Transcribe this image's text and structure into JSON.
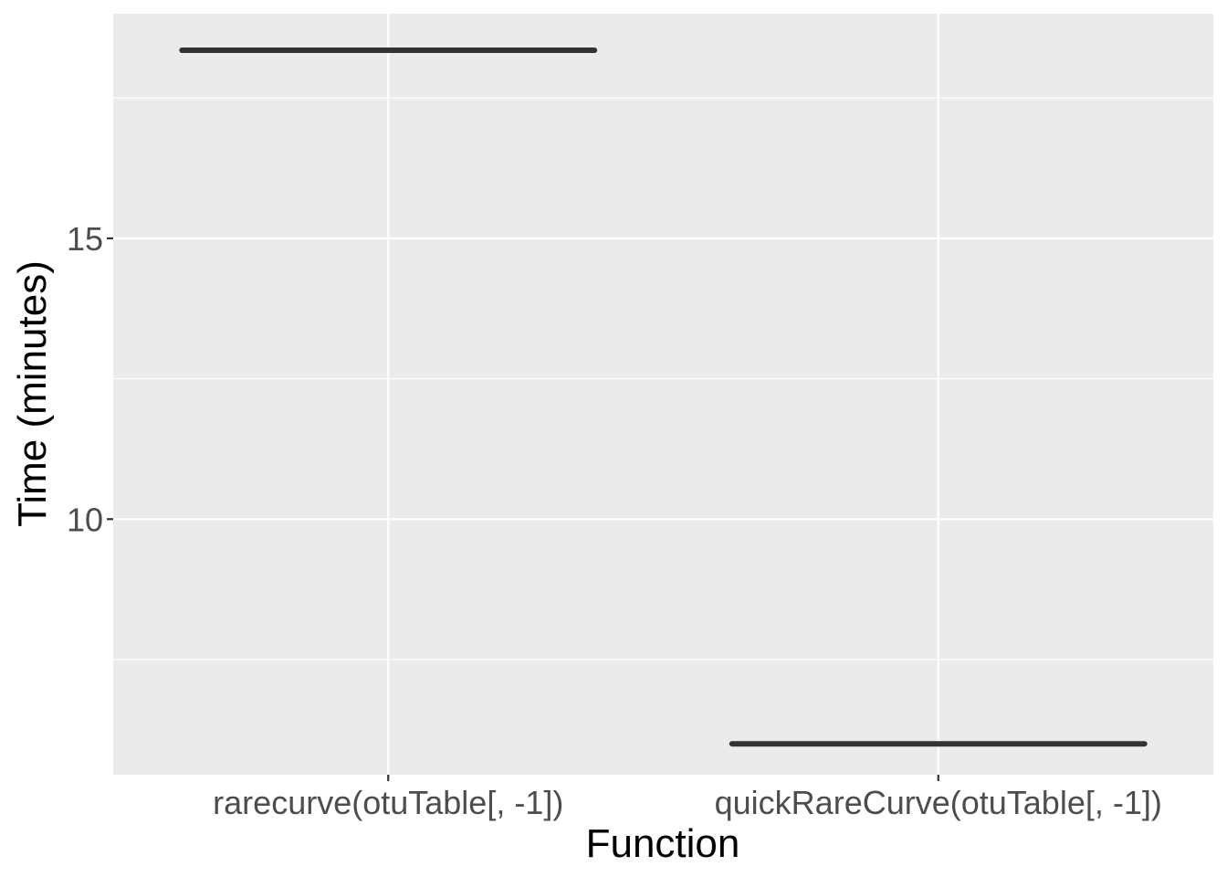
{
  "chart_data": {
    "type": "boxplot",
    "xlabel": "Function",
    "ylabel": "Time (minutes)",
    "categories": [
      "rarecurve(otuTable[, -1])",
      "quickRareCurve(otuTable[, -1])"
    ],
    "values": [
      18.35,
      6.0
    ],
    "ylim": [
      5.45,
      19.0
    ],
    "yticks": [
      10,
      15
    ],
    "grid": true,
    "colors": {
      "panel_background": "#ebebeb",
      "grid_major": "#ffffff",
      "box_line": "#333333",
      "tick_text": "#4d4d4d"
    }
  }
}
